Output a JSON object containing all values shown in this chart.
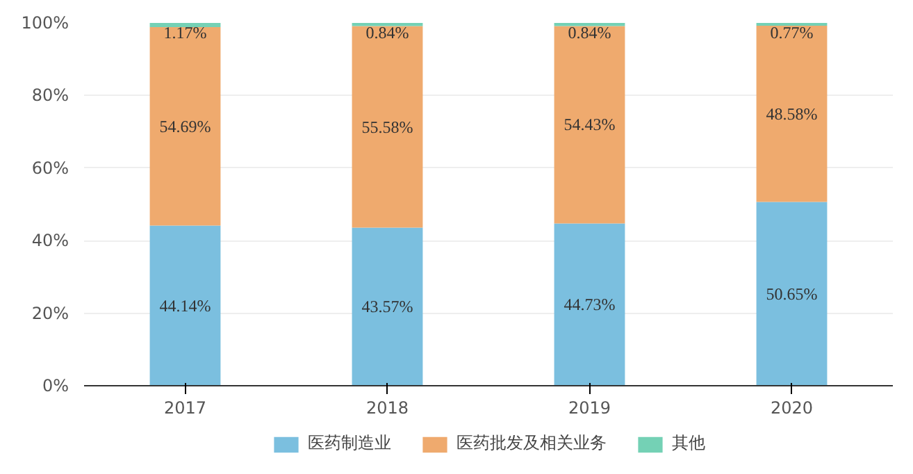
{
  "chart_data": {
    "type": "bar",
    "stacked": true,
    "categories": [
      "2017",
      "2018",
      "2019",
      "2020"
    ],
    "series": [
      {
        "name": "医药制造业",
        "color": "#7bbfdf",
        "values": [
          44.14,
          43.57,
          44.73,
          50.65
        ],
        "value_labels": [
          "44.14%",
          "43.57%",
          "44.73%",
          "50.65%"
        ]
      },
      {
        "name": "医药批发及相关业务",
        "color": "#efaa6e",
        "values": [
          54.69,
          55.58,
          54.43,
          48.58
        ],
        "value_labels": [
          "54.69%",
          "55.58%",
          "54.43%",
          "48.58%"
        ]
      },
      {
        "name": "其他",
        "color": "#74d1b5",
        "values": [
          1.17,
          0.84,
          0.84,
          0.77
        ],
        "value_labels": [
          "1.17%",
          "0.84%",
          "0.84%",
          "0.77%"
        ]
      }
    ],
    "ylim": [
      0,
      100
    ],
    "yticks": [
      {
        "value": 0,
        "label": "0%"
      },
      {
        "value": 20,
        "label": "20%"
      },
      {
        "value": 40,
        "label": "40%"
      },
      {
        "value": 60,
        "label": "60%"
      },
      {
        "value": 80,
        "label": "80%"
      },
      {
        "value": 100,
        "label": "100%"
      }
    ],
    "grid": "y",
    "legend": "bottom"
  }
}
